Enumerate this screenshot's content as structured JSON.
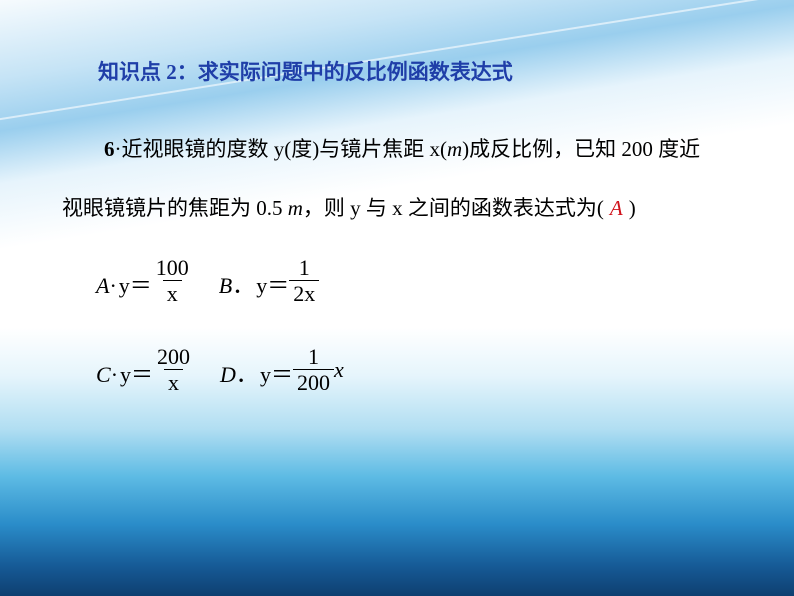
{
  "background": {
    "gradient_stops": [
      "#ffffff",
      "#e6f5fc",
      "#b1def2",
      "#5dbbe4",
      "#2a8cc9",
      "#165a96",
      "#0e3f70"
    ],
    "streak_angle_deg": -9,
    "streak_color": "#96cdee"
  },
  "heading": {
    "text": "知识点 2：求实际问题中的反比例函数表达式",
    "color": "#1f3ea8",
    "font_size_pt": 16,
    "font_weight": "bold"
  },
  "question": {
    "number": "6",
    "line1_before": "·近视眼镜的度数 y(度)与镜片焦距 x(",
    "unit_m": "m",
    "line1_after": ")成反比例，已知 200 度近",
    "line2_before": "视眼镜镜片的焦距为 0.5 ",
    "line2_after": "，则 y 与 x 之间的函数表达式为(",
    "line2_close": ")",
    "answer": "A",
    "answer_color": "#d0121b",
    "body_color": "#000000",
    "body_font_size_pt": 16,
    "line_height": 2.8
  },
  "options": {
    "A": {
      "label": "A",
      "sep": "·",
      "prefix": "y＝",
      "num": "100",
      "den": "x",
      "suffix": ""
    },
    "B": {
      "label": "B",
      "sep": "．",
      "prefix": "y＝",
      "num": "1",
      "den": "2x",
      "suffix": ""
    },
    "C": {
      "label": "C",
      "sep": "·",
      "prefix": "y＝",
      "num": "200",
      "den": "x",
      "suffix": ""
    },
    "D": {
      "label": "D",
      "sep": "．",
      "prefix": "y＝",
      "num": "1",
      "den": "200",
      "suffix": "x"
    }
  },
  "typography": {
    "body_font": "SimSun",
    "math_font": "Times New Roman",
    "math_style": "italic"
  }
}
